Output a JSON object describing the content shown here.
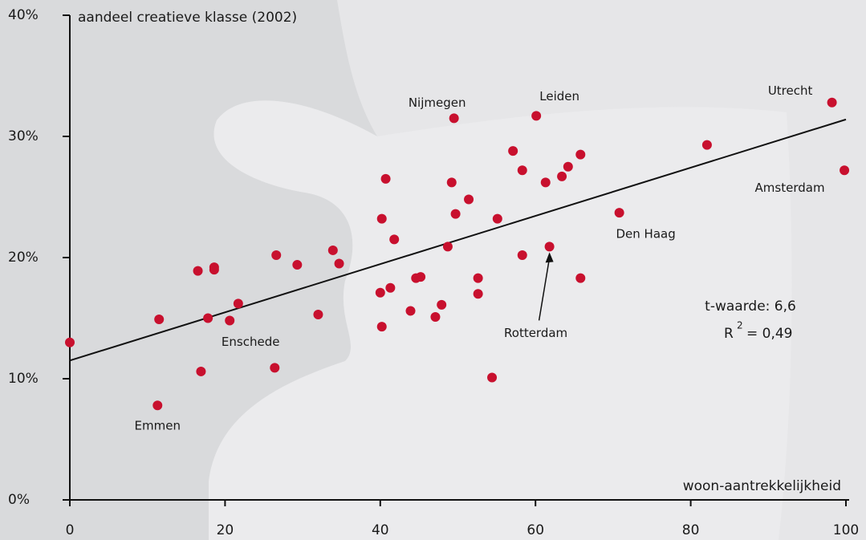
{
  "chart_data": {
    "type": "scatter",
    "y_label": "aandeel creatieve klasse (2002)",
    "x_label": "woon-aantrekkelijkheid",
    "color": "#c8102e",
    "xlim": [
      0,
      100
    ],
    "ylim": [
      0,
      40
    ],
    "xticks": [
      0,
      20,
      40,
      60,
      80,
      100
    ],
    "yticks": [
      {
        "value": 0,
        "label": "0%"
      },
      {
        "value": 10,
        "label": "10%"
      },
      {
        "value": 20,
        "label": "20%"
      },
      {
        "value": 30,
        "label": "30%"
      },
      {
        "value": 40,
        "label": "40%"
      }
    ],
    "x": [
      0,
      11.5,
      11.3,
      16.5,
      16.9,
      17.8,
      18.6,
      18.6,
      20.6,
      21.7,
      26.6,
      26.4,
      29.3,
      32.0,
      33.9,
      34.7,
      40.0,
      40.2,
      40.2,
      40.7,
      41.3,
      41.8,
      43.9,
      44.6,
      45.2,
      47.1,
      47.9,
      48.7,
      49.2,
      49.5,
      49.7,
      51.4,
      52.6,
      52.6,
      54.4,
      55.1,
      57.1,
      58.3,
      58.3,
      60.1,
      61.3,
      61.8,
      63.4,
      64.2,
      65.8,
      65.8,
      70.8,
      82.1,
      98.2,
      99.8
    ],
    "values": [
      13.0,
      14.9,
      7.8,
      18.9,
      10.6,
      15.0,
      19.2,
      19.0,
      14.8,
      16.2,
      20.2,
      10.9,
      19.4,
      15.3,
      20.6,
      19.5,
      17.1,
      23.2,
      14.3,
      26.5,
      17.5,
      21.5,
      15.6,
      18.3,
      18.4,
      15.1,
      16.1,
      20.9,
      26.2,
      31.5,
      23.6,
      24.8,
      18.3,
      17.0,
      10.1,
      23.2,
      28.8,
      27.2,
      20.2,
      31.7,
      26.2,
      20.9,
      26.7,
      27.5,
      28.5,
      18.3,
      23.7,
      29.3,
      32.8,
      27.2
    ],
    "point_labels": [
      null,
      null,
      "Emmen",
      null,
      null,
      null,
      null,
      null,
      "Enschede",
      null,
      null,
      null,
      null,
      null,
      null,
      null,
      null,
      null,
      null,
      null,
      null,
      null,
      null,
      null,
      null,
      null,
      null,
      null,
      null,
      "Nijmegen",
      null,
      null,
      null,
      null,
      null,
      null,
      null,
      null,
      null,
      "Leiden",
      null,
      "Rotterdam",
      null,
      null,
      null,
      null,
      "Den Haag",
      null,
      "Utrecht",
      "Amsterdam"
    ],
    "trendline": {
      "x": [
        0,
        100
      ],
      "values": [
        11.5,
        31.4
      ]
    },
    "stats": {
      "t": "t-waarde: 6,6",
      "r2_base": "R",
      "r2_sup": "2",
      "r2_rest": "= 0,49"
    }
  }
}
